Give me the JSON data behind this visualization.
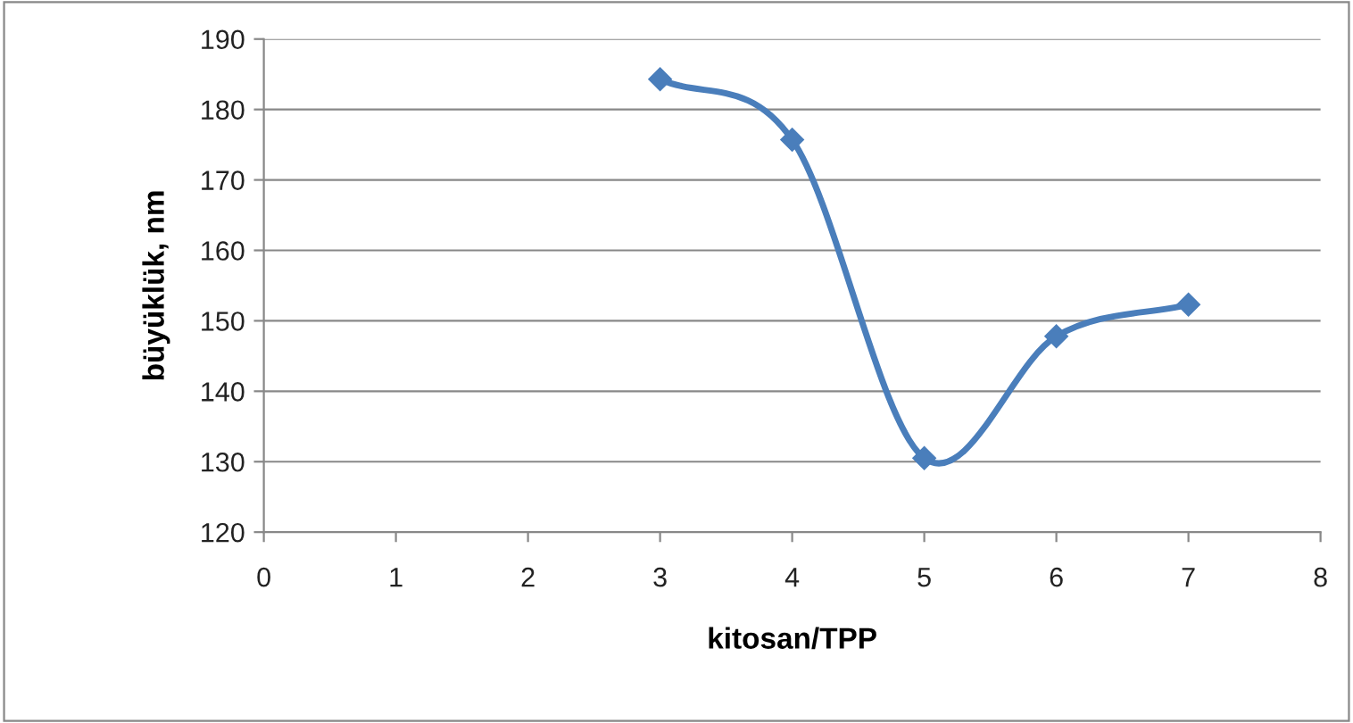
{
  "chart_data": {
    "type": "line",
    "xlabel": "kitosan/TPP",
    "ylabel": "büyüklük, nm",
    "x": [
      3,
      4,
      5,
      6,
      7
    ],
    "series": [
      {
        "color": "#4a7ebb",
        "values": [
          184.3,
          175.7,
          130.5,
          147.8,
          152.3
        ]
      }
    ],
    "xlim": [
      0,
      8
    ],
    "xticks": [
      0,
      1,
      2,
      3,
      4,
      5,
      6,
      7,
      8
    ],
    "ylim": [
      120,
      190
    ],
    "yticks": [
      120,
      130,
      140,
      150,
      160,
      170,
      180,
      190
    ],
    "grid": "y",
    "marker": "diamond",
    "line_style": "solid",
    "legend": false
  }
}
